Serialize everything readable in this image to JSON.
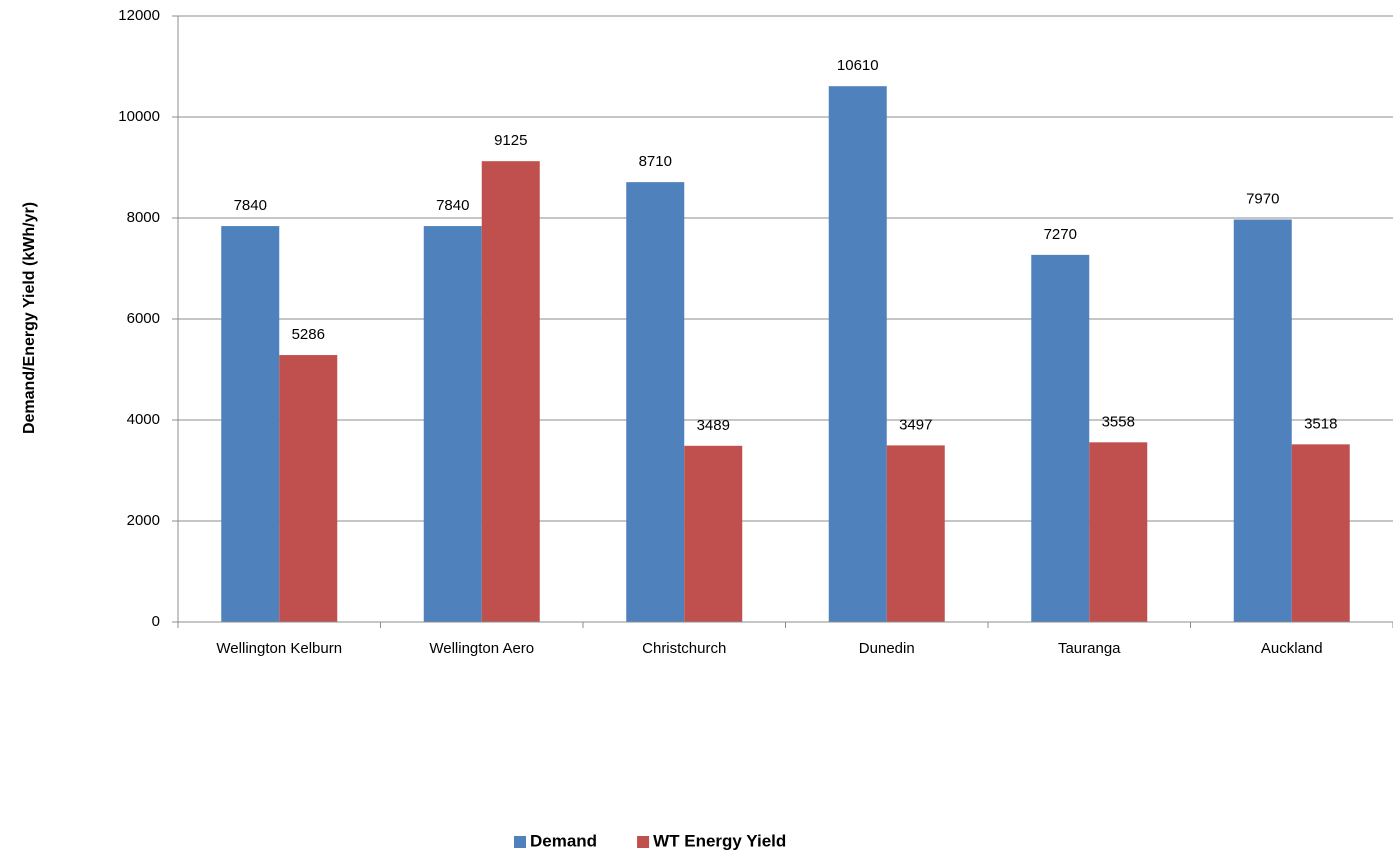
{
  "chart_data": {
    "type": "bar",
    "y_label": "Demand/Energy Yield (kWh/yr)",
    "categories": [
      "Wellington Kelburn",
      "Wellington Aero",
      "Christchurch",
      "Dunedin",
      "Tauranga",
      "Auckland"
    ],
    "series": [
      {
        "name": "Demand",
        "color": "#4f81bd",
        "values": [
          7840,
          7840,
          8710,
          10610,
          7270,
          7970
        ]
      },
      {
        "name": "WT Energy Yield",
        "color": "#c0504d",
        "values": [
          5286,
          9125,
          3489,
          3497,
          3558,
          3518
        ]
      }
    ],
    "ylim": [
      0,
      12000
    ],
    "yticks": [
      0,
      2000,
      4000,
      6000,
      8000,
      10000,
      12000
    ],
    "grid": true,
    "legend": "bottom"
  }
}
